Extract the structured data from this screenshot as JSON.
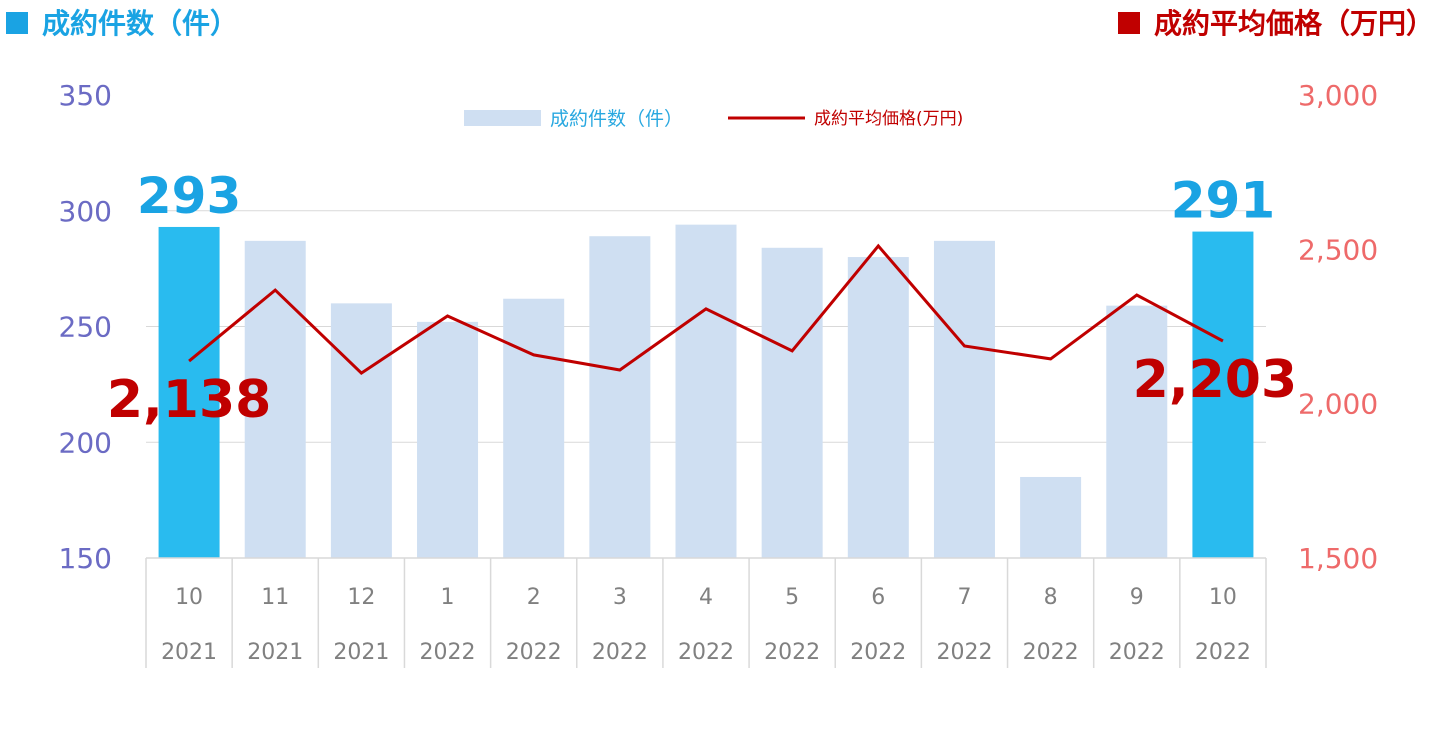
{
  "header": {
    "left_title": "成約件数（件）",
    "right_title": "成約平均価格（万円）"
  },
  "chart_data": {
    "type": "bar+line",
    "categories": [
      {
        "month": "10",
        "year": "2021"
      },
      {
        "month": "11",
        "year": "2021"
      },
      {
        "month": "12",
        "year": "2021"
      },
      {
        "month": "1",
        "year": "2022"
      },
      {
        "month": "2",
        "year": "2022"
      },
      {
        "month": "3",
        "year": "2022"
      },
      {
        "month": "4",
        "year": "2022"
      },
      {
        "month": "5",
        "year": "2022"
      },
      {
        "month": "6",
        "year": "2022"
      },
      {
        "month": "7",
        "year": "2022"
      },
      {
        "month": "8",
        "year": "2022"
      },
      {
        "month": "9",
        "year": "2022"
      },
      {
        "month": "10",
        "year": "2022"
      }
    ],
    "series": [
      {
        "name": "成約件数（件）",
        "type": "bar",
        "axis": "left",
        "values": [
          293,
          287,
          260,
          252,
          262,
          289,
          294,
          284,
          280,
          287,
          185,
          259,
          291
        ],
        "color": "#cfdff2",
        "highlight_color": "#29bbef",
        "highlight_indices": [
          0,
          12
        ]
      },
      {
        "name": "成約平均価格(万円)",
        "type": "line",
        "axis": "right",
        "values": [
          2138,
          2368,
          2099,
          2284,
          2158,
          2109,
          2307,
          2171,
          2511,
          2187,
          2145,
          2352,
          2203
        ],
        "color": "#c00000"
      }
    ],
    "left_axis": {
      "range": [
        150,
        350
      ],
      "ticks": [
        "150",
        "200",
        "250",
        "300",
        "350"
      ],
      "color": "#6b6bc4"
    },
    "right_axis": {
      "range": [
        1500,
        3000
      ],
      "ticks": [
        "1,500",
        "2,000",
        "2,500",
        "3,000"
      ],
      "color": "#ee6a6a"
    },
    "data_labels": [
      {
        "series": 0,
        "index": 0,
        "text": "293",
        "color": "#1aa3e3"
      },
      {
        "series": 0,
        "index": 12,
        "text": "291",
        "color": "#1aa3e3"
      },
      {
        "series": 1,
        "index": 0,
        "text": "2,138",
        "color": "#c00000"
      },
      {
        "series": 1,
        "index": 12,
        "text": "2,203",
        "color": "#c00000"
      }
    ],
    "legend": {
      "position": "top-center",
      "bar_label": "成約件数（件）",
      "line_label": "成約平均価格(万円)",
      "bar_text_color": "#29a8e0"
    },
    "grid": true
  }
}
